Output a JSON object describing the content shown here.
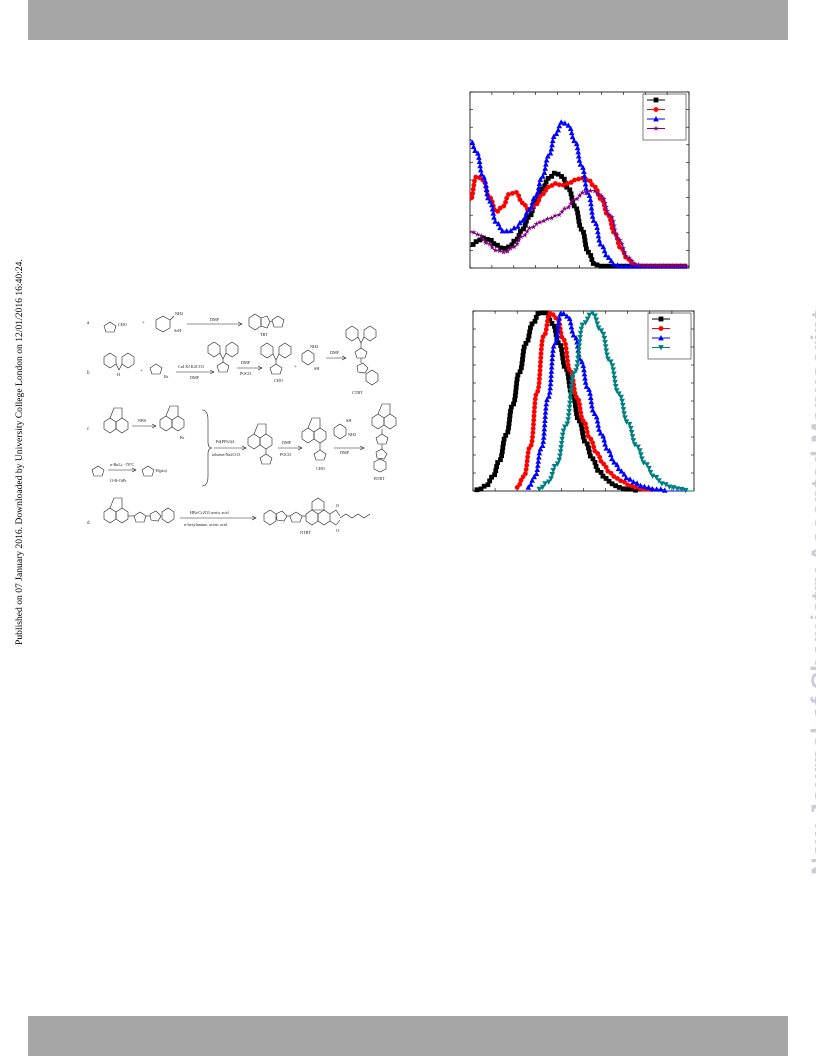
{
  "page": {
    "published_note": "Published on 07 January 2016. Downloaded by University College London on 12/01/2016 16:40:24.",
    "journal_watermark": "New Journal of Chemistry Accepted Manuscript"
  },
  "scheme": {
    "row_labels": [
      "a",
      "b",
      "c",
      "d"
    ],
    "compound_labels": [
      "TBT",
      "CTBT",
      "BTBT",
      "NTBT"
    ],
    "reagents": {
      "a_arrow": "DMF",
      "b_arrow1": "CuI KI K2CO3",
      "b_arrow1_sub": "DMF",
      "b_arrow2_top": "DMF",
      "b_arrow2_bot": "POCl3",
      "b_arrow3": "DMF",
      "c_arrow1": "NBS",
      "c_arrow_pd_top": "Pd(PPh3)4",
      "c_arrow_pd_bot": "toluene/Na2CO3",
      "c_arrow3_top": "DMF",
      "c_arrow3_bot": "POCl3",
      "c_arrow4": "DMF",
      "c_boronate_top": "n-BuLi, -78°C",
      "d_arrow_top": "HBr/Cr2O3 acetic acid",
      "d_arrow_bot": "n-hexylamine, acetic acid",
      "nh2": "NH2",
      "sh": "SH",
      "cho": "CHO",
      "br": "Br"
    }
  },
  "chart_data": [
    {
      "type": "line",
      "title": "",
      "xlabel": "",
      "ylabel": "",
      "x_range": [
        0,
        100
      ],
      "y_range": [
        0,
        1
      ],
      "legend_position": "top-right",
      "legend_labels_visible": false,
      "series": [
        {
          "color": "#000000",
          "marker": "square",
          "x": [
            0,
            3,
            6,
            9,
            12,
            15,
            18,
            21,
            24,
            27,
            30,
            33,
            36,
            39,
            42,
            45,
            48,
            51,
            54,
            57,
            60,
            63,
            66,
            70,
            75,
            80,
            85,
            90,
            95,
            100
          ],
          "y": [
            0.12,
            0.15,
            0.17,
            0.16,
            0.13,
            0.11,
            0.12,
            0.16,
            0.22,
            0.29,
            0.37,
            0.45,
            0.51,
            0.54,
            0.52,
            0.45,
            0.35,
            0.22,
            0.09,
            0.02,
            0.01,
            0.01,
            0.01,
            0.01,
            0.01,
            0.01,
            0.01,
            0.01,
            0.01,
            0.01
          ]
        },
        {
          "color": "#ff0000",
          "marker": "circle",
          "x": [
            0,
            3,
            6,
            9,
            12,
            15,
            18,
            21,
            24,
            27,
            30,
            33,
            36,
            39,
            42,
            45,
            48,
            51,
            54,
            57,
            60,
            63,
            66,
            69,
            72,
            75,
            78,
            81,
            84,
            87,
            90,
            95,
            100
          ],
          "y": [
            0.38,
            0.52,
            0.5,
            0.4,
            0.32,
            0.35,
            0.42,
            0.43,
            0.37,
            0.33,
            0.36,
            0.42,
            0.46,
            0.48,
            0.47,
            0.48,
            0.5,
            0.51,
            0.5,
            0.46,
            0.39,
            0.3,
            0.2,
            0.11,
            0.05,
            0.02,
            0.01,
            0.01,
            0.01,
            0.01,
            0.01,
            0.01,
            0.01
          ]
        },
        {
          "color": "#0000ff",
          "marker": "triangle-up",
          "x": [
            0,
            3,
            6,
            9,
            12,
            15,
            18,
            21,
            24,
            27,
            30,
            33,
            36,
            39,
            42,
            45,
            48,
            51,
            54,
            57,
            60,
            63,
            66,
            69,
            72,
            75,
            78,
            81,
            84,
            87,
            90,
            95,
            100
          ],
          "y": [
            0.73,
            0.66,
            0.52,
            0.38,
            0.26,
            0.21,
            0.21,
            0.23,
            0.27,
            0.33,
            0.41,
            0.52,
            0.64,
            0.76,
            0.83,
            0.81,
            0.72,
            0.58,
            0.42,
            0.26,
            0.13,
            0.06,
            0.02,
            0.01,
            0.01,
            0.01,
            0.01,
            0.01,
            0.01,
            0.01,
            0.01,
            0.01,
            0.01
          ]
        },
        {
          "color": "#800080",
          "marker": "star",
          "x": [
            0,
            4,
            8,
            12,
            16,
            20,
            24,
            28,
            32,
            36,
            40,
            44,
            48,
            52,
            56,
            60,
            64,
            68,
            72,
            76,
            80,
            84,
            88,
            92,
            96,
            100
          ],
          "y": [
            0.21,
            0.19,
            0.14,
            0.1,
            0.09,
            0.12,
            0.18,
            0.23,
            0.26,
            0.28,
            0.3,
            0.34,
            0.39,
            0.43,
            0.44,
            0.41,
            0.3,
            0.16,
            0.06,
            0.02,
            0.01,
            0.01,
            0.01,
            0.01,
            0.01,
            0.01
          ]
        }
      ]
    },
    {
      "type": "line",
      "title": "",
      "xlabel": "",
      "ylabel": "",
      "x_range": [
        0,
        100
      ],
      "y_range": [
        0,
        1
      ],
      "legend_position": "top-right",
      "legend_labels_visible": false,
      "series": [
        {
          "color": "#000000",
          "marker": "square",
          "x": [
            0,
            3,
            6,
            9,
            12,
            15,
            18,
            21,
            24,
            27,
            30,
            33,
            36,
            39,
            42,
            45,
            48,
            51,
            54,
            57,
            60,
            63,
            66,
            69,
            72,
            75,
            78,
            81,
            84,
            87,
            90,
            93,
            96,
            100
          ],
          "y": [
            0.0,
            0.01,
            0.03,
            0.08,
            0.17,
            0.31,
            0.48,
            0.66,
            0.82,
            0.93,
            0.99,
            0.99,
            0.93,
            0.82,
            0.68,
            0.53,
            0.39,
            0.27,
            0.18,
            0.11,
            0.07,
            0.04,
            0.02,
            0.01,
            0.01,
            0.0,
            0.0,
            0.0,
            0.0,
            0.0,
            0.0,
            0.0,
            0.0,
            0.0
          ]
        },
        {
          "color": "#ff0000",
          "marker": "circle",
          "x": [
            20,
            23,
            26,
            29,
            32,
            35,
            38,
            41,
            44,
            47,
            50,
            53,
            56,
            59,
            62,
            65,
            68,
            71,
            74,
            77,
            80,
            83,
            86,
            90,
            95,
            100
          ],
          "y": [
            0.02,
            0.08,
            0.25,
            0.55,
            0.86,
            0.99,
            0.96,
            0.84,
            0.67,
            0.52,
            0.39,
            0.29,
            0.21,
            0.15,
            0.1,
            0.07,
            0.05,
            0.03,
            0.02,
            0.01,
            0.01,
            0.0,
            0.0,
            0.0,
            0.0,
            0.0
          ]
        },
        {
          "color": "#0000ff",
          "marker": "triangle-up",
          "x": [
            25,
            28,
            31,
            34,
            37,
            40,
            43,
            46,
            49,
            52,
            55,
            58,
            61,
            64,
            67,
            70,
            73,
            76,
            79,
            82,
            85,
            88,
            91,
            95,
            100
          ],
          "y": [
            0.02,
            0.08,
            0.24,
            0.52,
            0.82,
            0.99,
            0.97,
            0.86,
            0.72,
            0.57,
            0.43,
            0.32,
            0.23,
            0.16,
            0.11,
            0.07,
            0.05,
            0.03,
            0.02,
            0.01,
            0.01,
            0.0,
            0.0,
            0.0,
            0.0
          ]
        },
        {
          "color": "#008080",
          "marker": "triangle-down",
          "x": [
            30,
            34,
            38,
            42,
            46,
            50,
            54,
            58,
            62,
            66,
            70,
            74,
            78,
            82,
            86,
            90,
            94,
            98,
            100
          ],
          "y": [
            0.01,
            0.05,
            0.15,
            0.36,
            0.66,
            0.93,
            0.99,
            0.89,
            0.72,
            0.54,
            0.38,
            0.25,
            0.15,
            0.08,
            0.04,
            0.02,
            0.01,
            0.0,
            0.0
          ]
        }
      ]
    }
  ]
}
